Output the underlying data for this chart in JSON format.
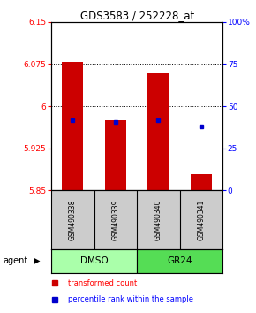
{
  "title": "GDS3583 / 252228_at",
  "samples": [
    "GSM490338",
    "GSM490339",
    "GSM490340",
    "GSM490341"
  ],
  "group_labels": [
    "DMSO",
    "GR24"
  ],
  "bar_bottom": 5.85,
  "red_tops": [
    6.078,
    5.975,
    6.058,
    5.878
  ],
  "blue_values": [
    5.975,
    5.972,
    5.975,
    5.963
  ],
  "ylim_left": [
    5.85,
    6.15
  ],
  "ylim_right": [
    0,
    100
  ],
  "yticks_left": [
    5.85,
    5.925,
    6.0,
    6.075,
    6.15
  ],
  "ytick_labels_left": [
    "5.85",
    "5.925",
    "6",
    "6.075",
    "6.15"
  ],
  "yticks_right": [
    0,
    25,
    50,
    75,
    100
  ],
  "ytick_labels_right": [
    "0",
    "25",
    "50",
    "75",
    "100%"
  ],
  "bar_color": "#CC0000",
  "dot_color": "#0000CC",
  "bar_width": 0.5,
  "legend_red": "transformed count",
  "legend_blue": "percentile rank within the sample",
  "agent_label": "agent",
  "sample_area_color": "#CCCCCC",
  "group_area_color_dmso": "#AAFFAA",
  "group_area_color_gr24": "#55DD55",
  "gridline_ticks": [
    5.925,
    6.0,
    6.075
  ]
}
